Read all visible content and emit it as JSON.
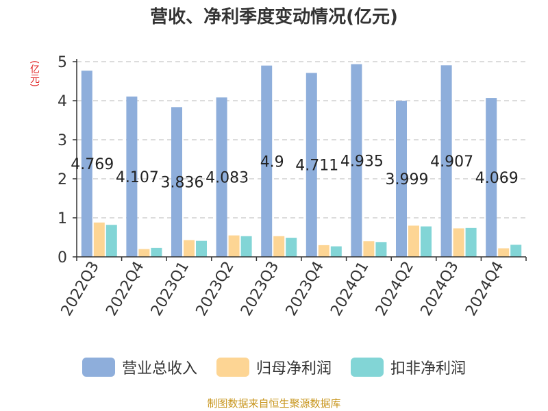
{
  "title": "营收、净利季度变动情况(亿元)",
  "unit_label": "(亿元)",
  "source": "制图数据来自恒生聚源数据库",
  "colors": {
    "revenue": "#8eaedb",
    "net_profit": "#fdd594",
    "deducted_net_profit": "#82d5d6",
    "unit_text": "#e02020",
    "source_text": "#c8961e",
    "grid": "#c8c8c8"
  },
  "legend": [
    {
      "label": "营业总收入",
      "color": "#8eaedb"
    },
    {
      "label": "归母净利润",
      "color": "#fdd594"
    },
    {
      "label": "扣非净利润",
      "color": "#82d5d6"
    }
  ],
  "chart_data": {
    "type": "bar",
    "title": "营收、净利季度变动情况(亿元)",
    "ylabel": "(亿元)",
    "xlabel": "",
    "ylim": [
      0,
      5
    ],
    "yticks": [
      0,
      1,
      2,
      3,
      4,
      5
    ],
    "grid": true,
    "legend_position": "bottom",
    "categories": [
      "2022Q3",
      "2022Q4",
      "2023Q1",
      "2023Q2",
      "2023Q3",
      "2023Q4",
      "2024Q1",
      "2024Q2",
      "2024Q3",
      "2024Q4"
    ],
    "series": [
      {
        "name": "营业总收入",
        "values": [
          4.769,
          4.107,
          3.836,
          4.083,
          4.9,
          4.711,
          4.935,
          3.999,
          4.907,
          4.069
        ],
        "labels": [
          "4.769",
          "4.107",
          "3.836",
          "4.083",
          "4.9",
          "4.711",
          "4.935",
          "3.999",
          "4.907",
          "4.069"
        ]
      },
      {
        "name": "归母净利润",
        "values": [
          0.88,
          0.2,
          0.43,
          0.55,
          0.53,
          0.3,
          0.4,
          0.8,
          0.73,
          0.22
        ]
      },
      {
        "name": "扣非净利润",
        "values": [
          0.82,
          0.23,
          0.41,
          0.53,
          0.49,
          0.27,
          0.38,
          0.78,
          0.74,
          0.31
        ]
      }
    ]
  }
}
